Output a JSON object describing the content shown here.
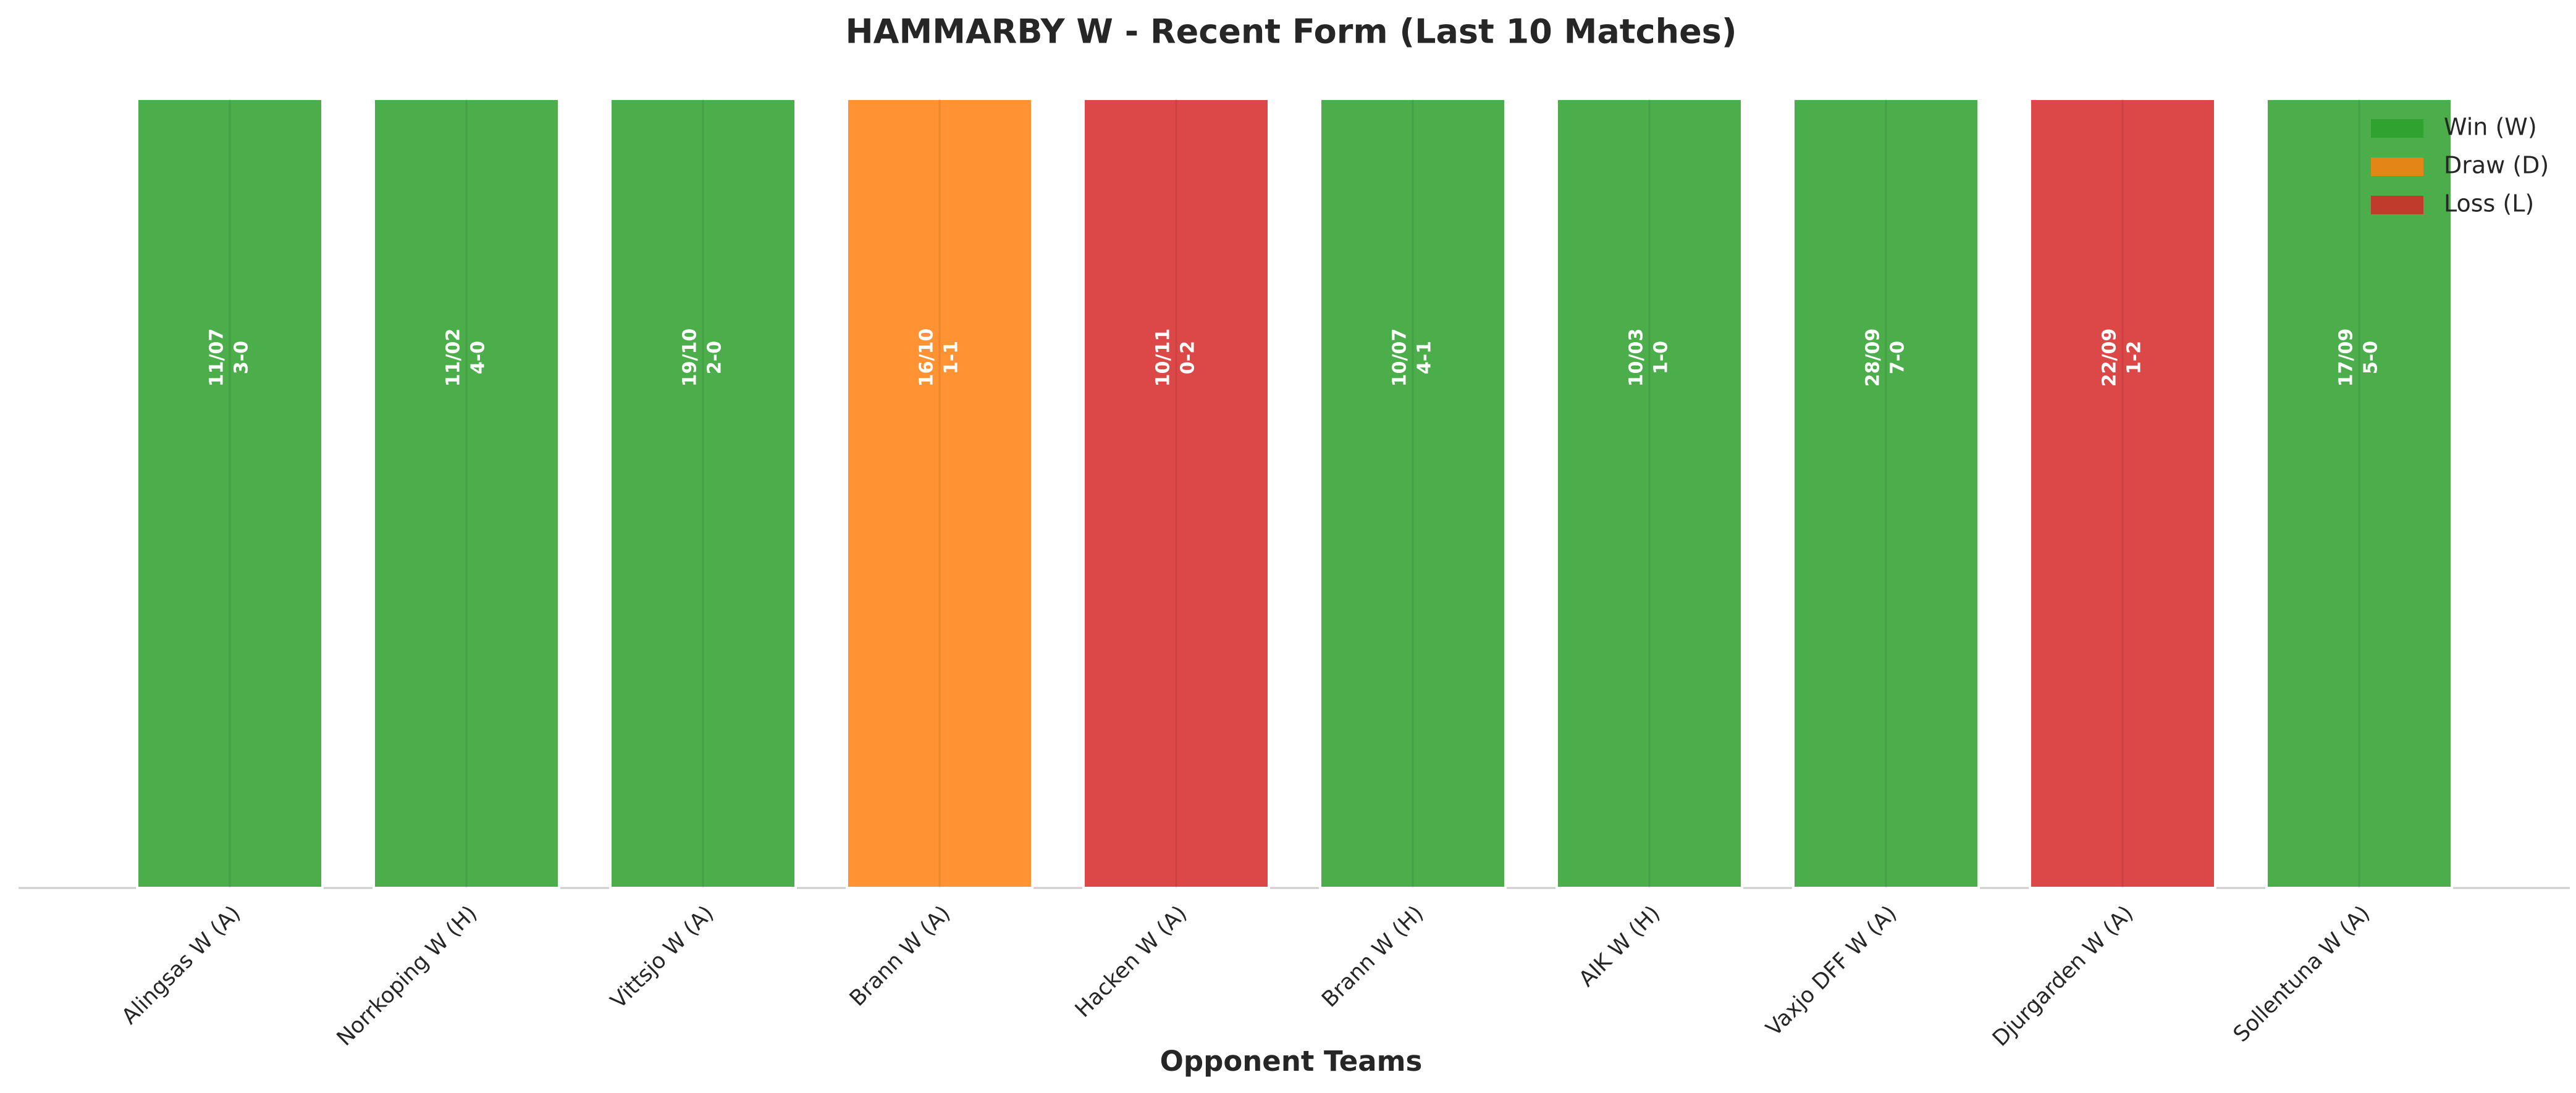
{
  "chart_data": {
    "type": "bar",
    "title": "HAMMARBY W - Recent Form (Last 10 Matches)",
    "x_label": "Opponent Teams",
    "categories": [
      "Alingsas W (A)",
      "Norrkoping W (H)",
      "Vittsjo W (A)",
      "Brann W (A)",
      "Hacken W (A)",
      "Brann W (H)",
      "AIK W (H)",
      "Vaxjo DFF W (A)",
      "Djurgarden W (A)",
      "Sollentuna W (A)"
    ],
    "values": [
      1,
      1,
      1,
      1,
      1,
      1,
      1,
      1,
      1,
      1
    ],
    "colors": [
      "#2ca02c",
      "#2ca02c",
      "#2ca02c",
      "#ff7f0e",
      "#d62728",
      "#2ca02c",
      "#2ca02c",
      "#2ca02c",
      "#d62728",
      "#2ca02c"
    ],
    "dates": [
      "11/07",
      "11/02",
      "19/10",
      "16/10",
      "10/11",
      "10/07",
      "10/03",
      "28/09",
      "22/09",
      "17/09"
    ],
    "scores": [
      "3-0",
      "4-0",
      "2-0",
      "1-1",
      "0-2",
      "4-1",
      "1-0",
      "7-0",
      "1-2",
      "5-0"
    ],
    "ylim": [
      0,
      1
    ],
    "legend": [
      {
        "name": "Win (W)",
        "color": "#2ca02c"
      },
      {
        "name": "Draw (D)",
        "color": "#ff7f0e"
      },
      {
        "name": "Loss (L)",
        "color": "#d62728"
      }
    ],
    "legend_position": "upper right"
  }
}
